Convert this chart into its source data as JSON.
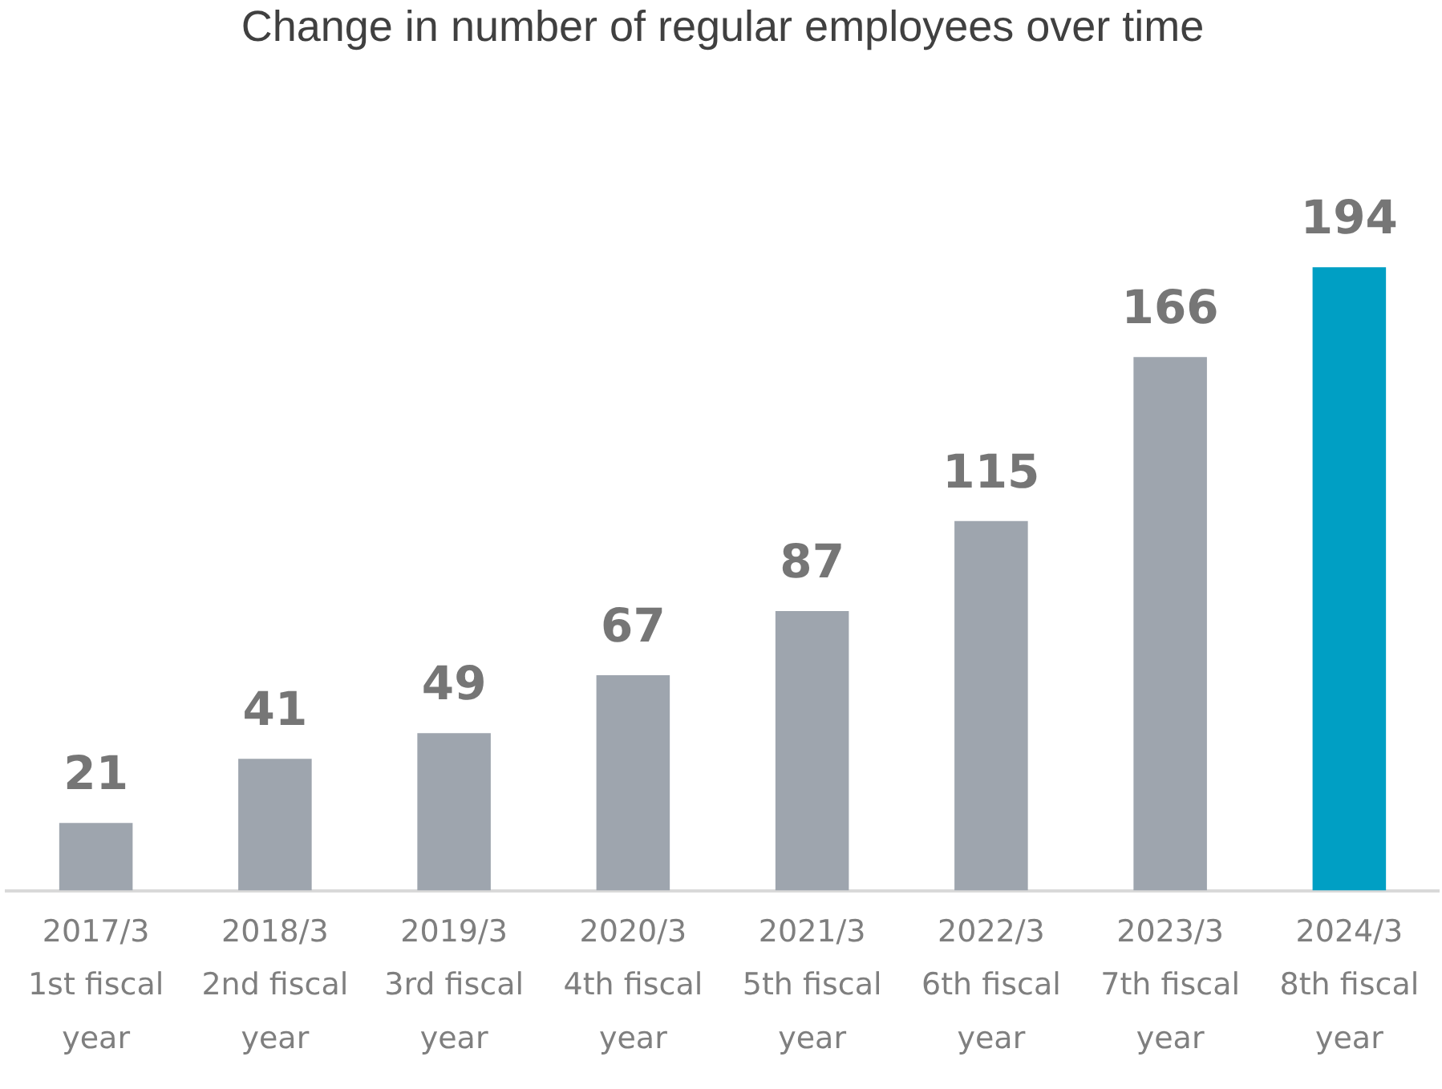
{
  "chart_data": {
    "type": "bar",
    "title": "Change in number of regular employees over time",
    "categories": [
      "2017/3\n1st fiscal\nyear",
      "2018/3\n2nd fiscal\nyear",
      "2019/3\n3rd fiscal\nyear",
      "2020/3\n4th fiscal\nyear",
      "2021/3\n5th fiscal\nyear",
      "2022/3\n6th fiscal\nyear",
      "2023/3\n7th fiscal\nyear",
      "2024/3\n8th fiscal\nyear"
    ],
    "values": [
      21,
      41,
      49,
      67,
      87,
      115,
      166,
      194
    ],
    "colors": [
      "#9ea5ae",
      "#9ea5ae",
      "#9ea5ae",
      "#9ea5ae",
      "#9ea5ae",
      "#9ea5ae",
      "#9ea5ae",
      "#009fc4"
    ],
    "data_labels": true,
    "grid": false,
    "legend": false
  }
}
